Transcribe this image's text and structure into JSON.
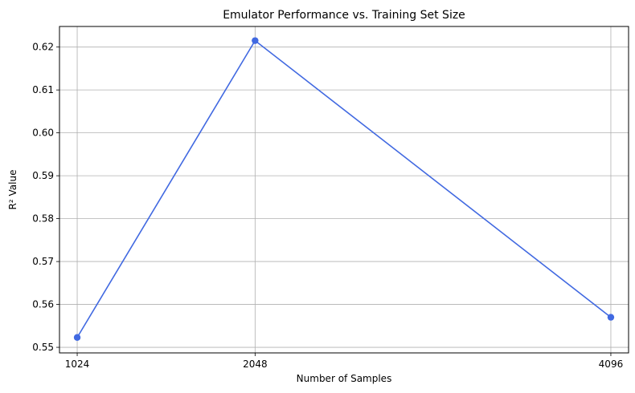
{
  "chart_data": {
    "type": "line",
    "title": "Emulator Performance vs. Training Set Size",
    "xlabel": "Number of Samples",
    "ylabel": "R² Value",
    "x": [
      1024,
      2048,
      4096
    ],
    "x_tick_labels": [
      "1024",
      "2048",
      "4096"
    ],
    "xlim": [
      922,
      4198
    ],
    "y_ticks": [
      0.55,
      0.56,
      0.57,
      0.58,
      0.59,
      0.6,
      0.61,
      0.62
    ],
    "y_tick_labels": [
      "0.55",
      "0.56",
      "0.57",
      "0.58",
      "0.59",
      "0.60",
      "0.61",
      "0.62"
    ],
    "ylim": [
      0.5487,
      0.6248
    ],
    "grid": true,
    "series": [
      {
        "values": [
          0.5523,
          0.6215,
          0.557
        ],
        "color": "#4169e1",
        "marker": "circle"
      }
    ]
  }
}
